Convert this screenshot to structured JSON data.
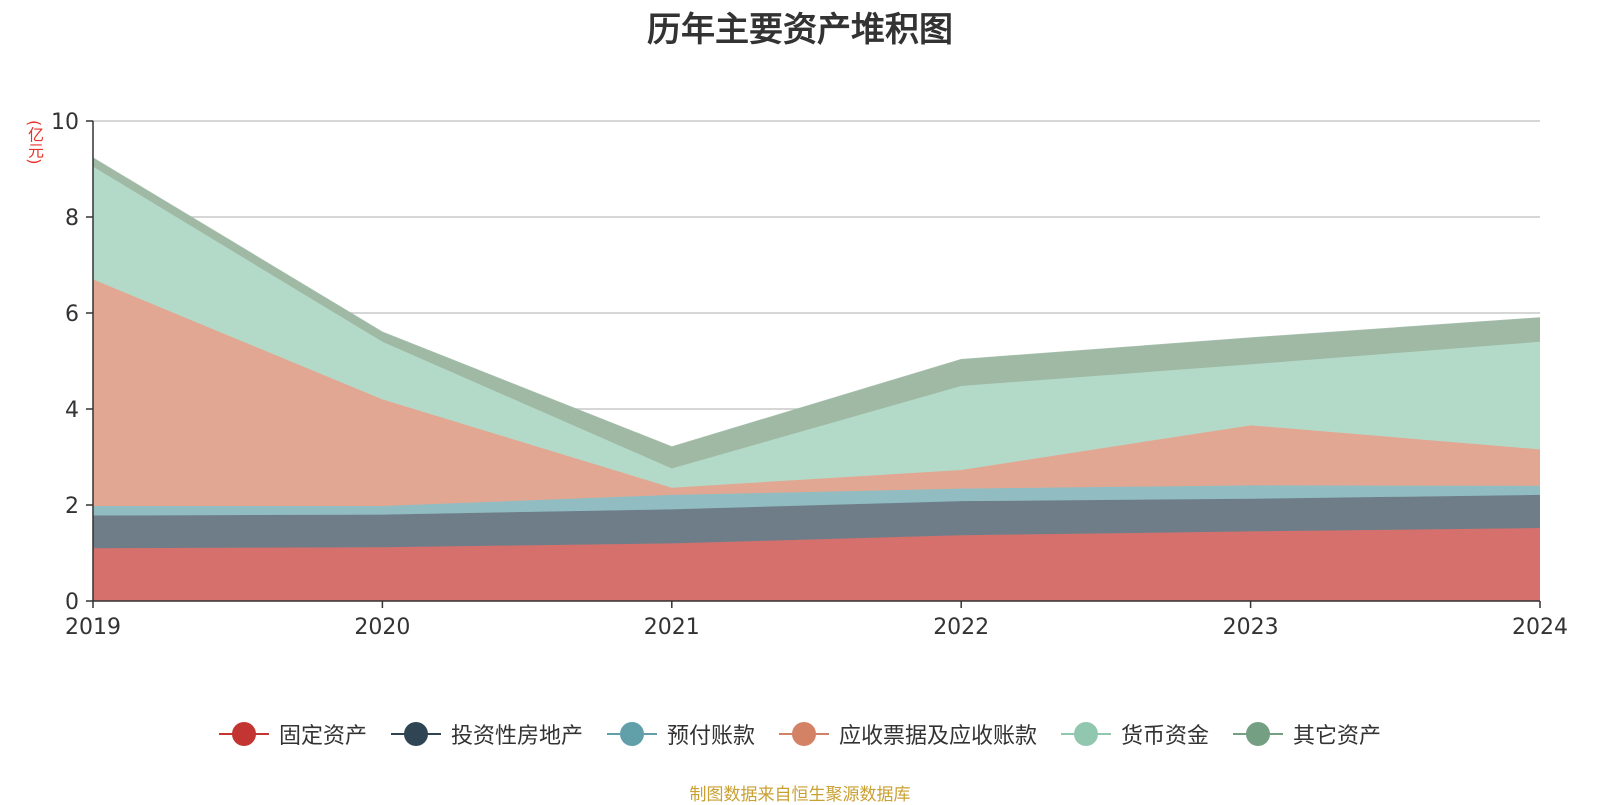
{
  "chart_data": {
    "type": "area",
    "title": "历年主要资产堆积图",
    "ylabel": "(亿元)",
    "xlabel": "",
    "x": [
      "2019",
      "2020",
      "2021",
      "2022",
      "2023",
      "2024"
    ],
    "ylim": [
      0,
      10
    ],
    "yticks": [
      "0",
      "2",
      "4",
      "6",
      "8",
      "10"
    ],
    "stacked": true,
    "grid": true,
    "legend_position": "bottom-center",
    "series": [
      {
        "name": "固定资产",
        "color": "#c23531",
        "fill": "#d5706c",
        "values": [
          1.1,
          1.12,
          1.2,
          1.37,
          1.45,
          1.52
        ]
      },
      {
        "name": "投资性房地产",
        "color": "#2f4554",
        "fill": "#6e7d88",
        "values": [
          0.68,
          0.68,
          0.71,
          0.71,
          0.68,
          0.69
        ]
      },
      {
        "name": "预付账款",
        "color": "#61a0a8",
        "fill": "#90bcc2",
        "values": [
          0.2,
          0.18,
          0.3,
          0.26,
          0.28,
          0.19
        ]
      },
      {
        "name": "应收票据及应收账款",
        "color": "#d48265",
        "fill": "#e1a792",
        "values": [
          4.72,
          2.22,
          0.15,
          0.39,
          1.25,
          0.76
        ]
      },
      {
        "name": "货币资金",
        "color": "#91c7ae",
        "fill": "#b3dac8",
        "values": [
          2.35,
          1.2,
          0.4,
          1.75,
          1.27,
          2.24
        ]
      },
      {
        "name": "其它资产",
        "color": "#749f83",
        "fill": "#9fb9a5",
        "values": [
          0.18,
          0.2,
          0.45,
          0.55,
          0.55,
          0.5
        ]
      }
    ]
  },
  "footer": {
    "source": "制图数据来自恒生聚源数据库"
  }
}
